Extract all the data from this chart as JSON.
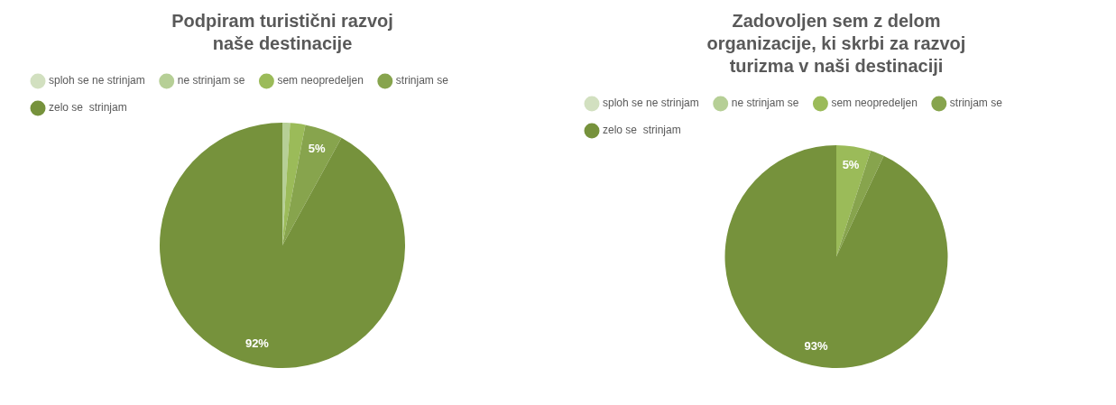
{
  "chart_data": [
    {
      "type": "pie",
      "title": "Podpiram turistični razvoj\nnaše destinacije",
      "categories": [
        "sploh se ne strinjam",
        "ne strinjam se",
        "sem neopredeljen",
        "strinjam se",
        "zelo se  strinjam"
      ],
      "values": [
        0,
        1,
        2,
        5,
        92
      ],
      "value_labels": [
        null,
        null,
        null,
        "5%",
        "92%"
      ],
      "colors": [
        "#d2e0c0",
        "#b6cf96",
        "#9bbb59",
        "#87a44d",
        "#76923c"
      ],
      "legend": "top"
    },
    {
      "type": "pie",
      "title": "Zadovoljen sem z delom\norganizacije, ki skrbi za razvoj\nturizma v naši destinaciji",
      "categories": [
        "sploh se ne strinjam",
        "ne strinjam se",
        "sem neopredeljen",
        "strinjam se",
        "zelo se  strinjam"
      ],
      "values": [
        0,
        0,
        5,
        2,
        93
      ],
      "value_labels": [
        null,
        null,
        "5%",
        null,
        "93%"
      ],
      "colors": [
        "#d2e0c0",
        "#b6cf96",
        "#9bbb59",
        "#87a44d",
        "#76923c"
      ],
      "legend": "top"
    }
  ]
}
